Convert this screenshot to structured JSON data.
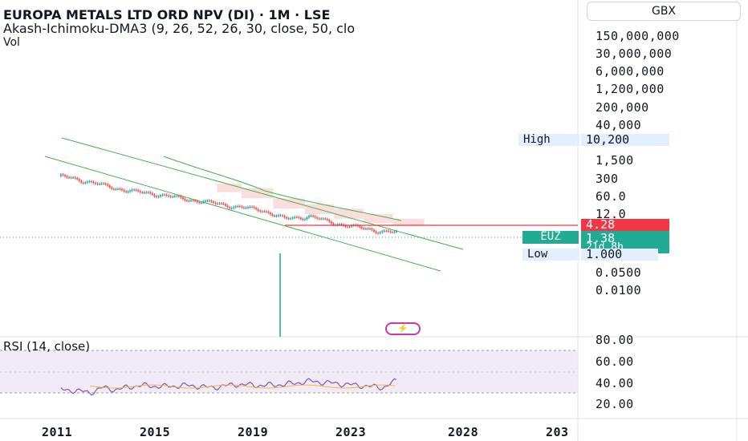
{
  "header": {
    "title": "EUROPA METALS LTD ORD NPV (DI) · 1M · LSE",
    "indicator": "Akash-Ichimoku-DMA3 (9, 26, 52, 26, 30, close, 50, clo",
    "volume": "Vol",
    "rsi": "RSI (14, close)"
  },
  "currency": "GBX",
  "price_axis_labels": [
    "150,000,000",
    "30,000,000",
    "6,000,000",
    "1,200,000",
    "200,000",
    "40,000",
    "1,500",
    "300",
    "60.0",
    "12.0",
    "0.0500",
    "0.0100"
  ],
  "markers": {
    "high_label": "High",
    "high_value": "10,200",
    "last_value": "4.28",
    "symbol": "EUZ",
    "price": "1.38",
    "countdown": "21d 8h",
    "low_label": "Low",
    "low_value": "1.000"
  },
  "rsi_axis_labels": [
    "80.00",
    "60.00",
    "40.00",
    "20.00"
  ],
  "x_axis_labels": [
    "2011",
    "2015",
    "2019",
    "2023",
    "2028",
    "203"
  ],
  "colors": {
    "bull": "#26a69a",
    "bear": "#ef5350",
    "channel": "#43b24b",
    "cloud": "#f9c7c7",
    "last_line": "#f23645",
    "rsi": "#7e57c2",
    "rsi_band": "#ede7f6",
    "symbol_tag": "#22ab94"
  },
  "chart_data": [
    {
      "type": "line",
      "title": "EUROPA METALS LTD ORD NPV (DI) · 1M · LSE",
      "yscale": "log",
      "x": [
        2010.8,
        2012,
        2013,
        2014,
        2015,
        2016,
        2017,
        2018,
        2019,
        2020,
        2021,
        2022,
        2023,
        2024,
        2024.6
      ],
      "series": [
        {
          "values": [
            10200,
            4000,
            1500,
            800,
            500,
            250,
            150,
            80,
            50,
            12,
            18,
            6,
            3,
            1.6,
            1.38
          ]
        }
      ],
      "annotations": {
        "high": 10200,
        "low": 1.0,
        "last": 1.38,
        "reference_line": 4.28
      }
    },
    {
      "type": "line",
      "title": "RSI (14, close)",
      "ylim": [
        20,
        80
      ],
      "x": [
        2010.8,
        2011.5,
        2012,
        2012.5,
        2013,
        2014,
        2015,
        2016,
        2017,
        2018,
        2019,
        2020,
        2021,
        2022,
        2023,
        2024,
        2024.6
      ],
      "series": [
        {
          "values": [
            33,
            32,
            30,
            35,
            33,
            37,
            36,
            37,
            35,
            38,
            37,
            38,
            41,
            39,
            37,
            35,
            42
          ]
        }
      ],
      "band": [
        30,
        70
      ]
    }
  ]
}
